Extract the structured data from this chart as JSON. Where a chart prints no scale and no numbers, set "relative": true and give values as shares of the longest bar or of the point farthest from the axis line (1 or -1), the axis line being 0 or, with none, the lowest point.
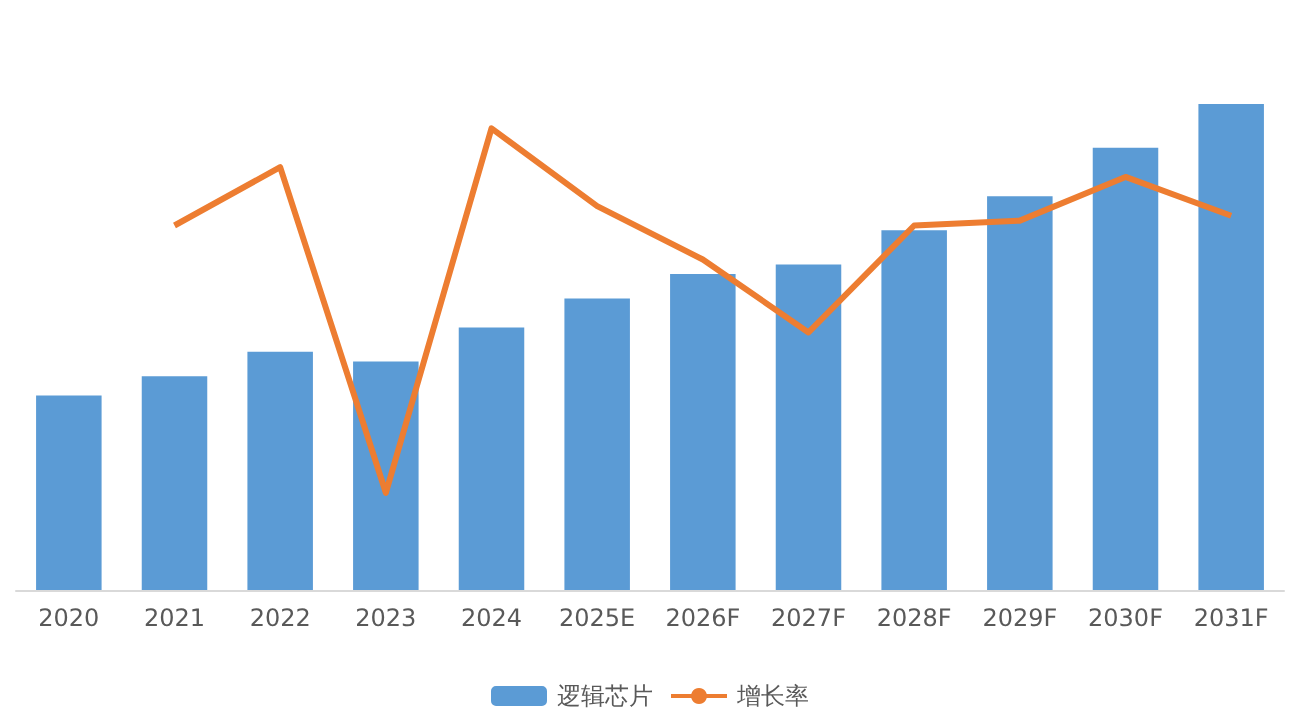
{
  "chart_data": {
    "type": "bar",
    "relative": true,
    "categories": [
      "2020",
      "2021",
      "2022",
      "2023",
      "2024",
      "2025E",
      "2026F",
      "2027F",
      "2028F",
      "2029F",
      "2030F",
      "2031F"
    ],
    "series": [
      {
        "name": "逻辑芯片",
        "color": "#5b9bd5",
        "values": [
          0.4,
          0.44,
          0.49,
          0.47,
          0.54,
          0.6,
          0.65,
          0.67,
          0.74,
          0.81,
          0.91,
          1
        ]
      },
      {
        "name": "增长率",
        "type": "line",
        "color": "#ed7d31",
        "values": [
          null,
          0.75,
          0.87,
          0.2,
          0.95,
          0.79,
          0.68,
          0.53,
          0.75,
          0.76,
          0.85,
          0.77
        ]
      }
    ],
    "legend": "bottom",
    "marker": "none"
  }
}
